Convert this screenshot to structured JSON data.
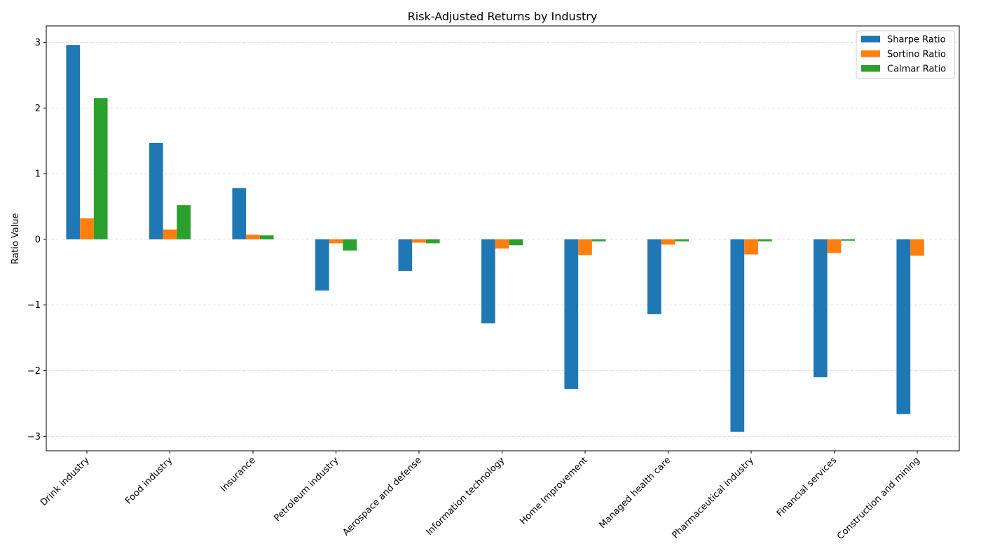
{
  "chart_data": {
    "type": "bar",
    "title": "Risk-Adjusted Returns by Industry",
    "xlabel": "",
    "ylabel": "Ratio Value",
    "ylim": [
      -3.22,
      3.25
    ],
    "yticks": [
      -3,
      -2,
      -1,
      0,
      1,
      2,
      3
    ],
    "grid": "y-dashed",
    "legend_position": "top-right",
    "categories": [
      "Drink industry",
      "Food industry",
      "Insurance",
      "Petroleum industry",
      "Aerospace and defense",
      "Information technology",
      "Home Improvement",
      "Managed health care",
      "Pharmaceutical industry",
      "Financial services",
      "Construction and mining"
    ],
    "series": [
      {
        "name": "Sharpe Ratio",
        "color": "#1f77b4",
        "values": [
          2.96,
          1.47,
          0.78,
          -0.78,
          -0.48,
          -1.28,
          -2.28,
          -1.14,
          -2.93,
          -2.1,
          -2.66
        ]
      },
      {
        "name": "Sortino Ratio",
        "color": "#ff7f0e",
        "values": [
          0.32,
          0.15,
          0.07,
          -0.06,
          -0.05,
          -0.14,
          -0.24,
          -0.08,
          -0.23,
          -0.21,
          -0.25
        ]
      },
      {
        "name": "Calmar Ratio",
        "color": "#2ca02c",
        "values": [
          2.15,
          0.52,
          0.06,
          -0.17,
          -0.06,
          -0.09,
          -0.03,
          -0.03,
          -0.03,
          -0.02,
          0.0
        ]
      }
    ]
  }
}
